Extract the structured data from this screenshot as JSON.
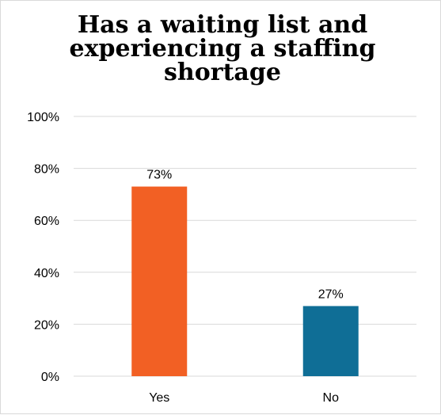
{
  "chart_data": {
    "type": "bar",
    "title": "Has a waiting list and experiencing a staffing shortage",
    "xlabel": "",
    "ylabel": "",
    "categories": [
      "Yes",
      "No"
    ],
    "values": [
      73,
      27
    ],
    "data_labels": [
      "73%",
      "27%"
    ],
    "bar_colors": [
      "#f26024",
      "#0f6e96"
    ],
    "ylim": [
      0,
      100
    ],
    "y_ticks": [
      0,
      20,
      40,
      60,
      80,
      100
    ],
    "y_tick_labels": [
      "0%",
      "20%",
      "40%",
      "60%",
      "80%",
      "100%"
    ],
    "grid": true,
    "legend": "none"
  }
}
